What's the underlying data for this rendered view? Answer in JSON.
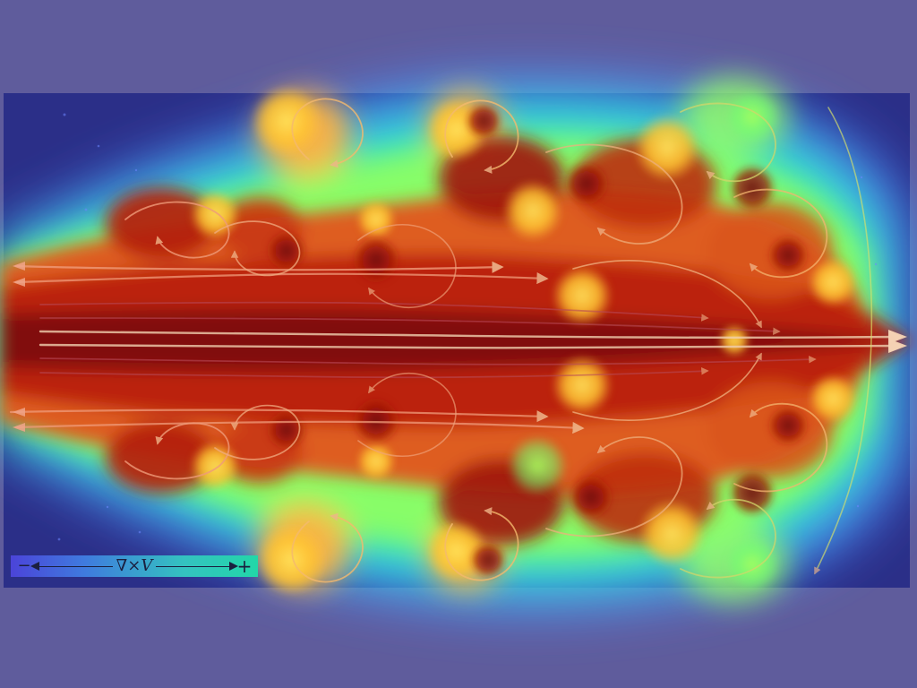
{
  "legend": {
    "label": "∇×V",
    "low_label": "−",
    "high_label": "+"
  },
  "colors": {
    "background": "#5f5c9c",
    "panel": "#2b2f88",
    "scale": [
      "#2b2f88",
      "#4b88ff",
      "#2ee6c8",
      "#9cff5f",
      "#f7d83a",
      "#f16a1c",
      "#8f1308"
    ]
  },
  "visualization": {
    "kind": "fluid jet vorticity field with streamlines",
    "flow_direction": "left-to-right",
    "streamlines": true
  }
}
